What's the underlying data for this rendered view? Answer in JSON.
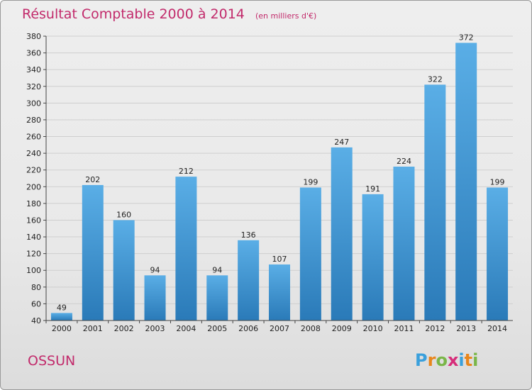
{
  "chart_data": {
    "type": "bar",
    "title": "Résultat Comptable 2000 à 2014",
    "subtitle": "(en milliers d'€)",
    "categories": [
      "2000",
      "2001",
      "2002",
      "2003",
      "2004",
      "2005",
      "2006",
      "2007",
      "2008",
      "2009",
      "2010",
      "2011",
      "2012",
      "2013",
      "2014"
    ],
    "values": [
      49,
      202,
      160,
      94,
      212,
      94,
      136,
      107,
      199,
      247,
      191,
      224,
      322,
      372,
      199
    ],
    "ylim": [
      40,
      380
    ],
    "yticks": [
      40,
      60,
      80,
      100,
      120,
      140,
      160,
      180,
      200,
      220,
      240,
      260,
      280,
      300,
      320,
      340,
      360,
      380
    ],
    "grid": true,
    "colors": {
      "bar_top": "#5aaee6",
      "bar_bottom": "#2a7ab8",
      "title": "#c22a6b",
      "grid": "#cfcfcf"
    }
  },
  "footer": {
    "location": "OSSUN",
    "logo": "Proxiti",
    "logo_colors": [
      "#3aa0dc",
      "#e8861c",
      "#7ab648",
      "#d62d7a",
      "#3aa0dc",
      "#e8861c",
      "#7ab648"
    ]
  }
}
